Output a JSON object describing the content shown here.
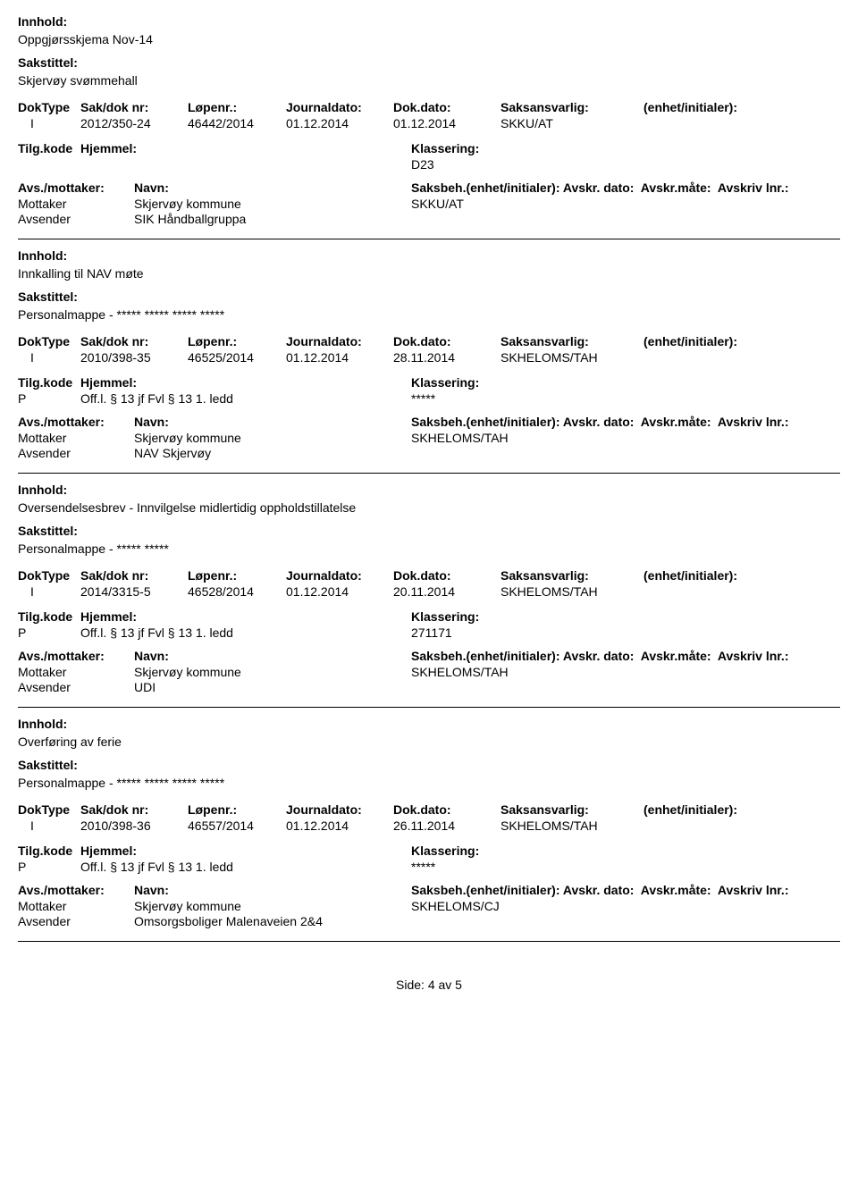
{
  "labels": {
    "innhold": "Innhold:",
    "sakstittel": "Sakstittel:",
    "doktype": "DokType",
    "sakdok": "Sak/dok nr:",
    "lopenr": "Løpenr.:",
    "journaldato": "Journaldato:",
    "dokdato": "Dok.dato:",
    "saksansvarlig": "Saksansvarlig:",
    "enhet": "(enhet/initialer):",
    "tilgkode": "Tilg.kode",
    "hjemmel": "Hjemmel:",
    "klassering": "Klassering:",
    "avsmottaker": "Avs./mottaker:",
    "navn": "Navn:",
    "saksbeh": "Saksbeh.(enhet/initialer):",
    "avskrdato": "Avskr. dato:",
    "avskrmate": "Avskr.måte:",
    "avskrivlnr": "Avskriv lnr.:",
    "mottaker": "Mottaker",
    "avsender": "Avsender"
  },
  "records": [
    {
      "innhold": "Oppgjørsskjema Nov-14",
      "sakstittel": "Skjervøy svømmehall",
      "doktype": "I",
      "sakdok": "2012/350-24",
      "lopenr": "46442/2014",
      "journaldato": "01.12.2014",
      "dokdato": "01.12.2014",
      "saksansvarlig": "SKKU/AT",
      "tilgkode": "",
      "hjemmel": "",
      "klassering": "D23",
      "mottaker_navn": "Skjervøy kommune",
      "mottaker_saksbeh": "SKKU/AT",
      "avsender_navn": "SIK Håndballgruppa"
    },
    {
      "innhold": "Innkalling til NAV møte",
      "sakstittel": "Personalmappe - ***** ***** ***** *****",
      "doktype": "I",
      "sakdok": "2010/398-35",
      "lopenr": "46525/2014",
      "journaldato": "01.12.2014",
      "dokdato": "28.11.2014",
      "saksansvarlig": "SKHELOMS/TAH",
      "tilgkode": "P",
      "hjemmel": "Off.l. § 13 jf Fvl § 13 1. ledd",
      "klassering": "*****",
      "mottaker_navn": "Skjervøy kommune",
      "mottaker_saksbeh": "SKHELOMS/TAH",
      "avsender_navn": "NAV Skjervøy"
    },
    {
      "innhold": "Oversendelsesbrev - Innvilgelse midlertidig oppholdstillatelse",
      "sakstittel": "Personalmappe - ***** *****",
      "doktype": "I",
      "sakdok": "2014/3315-5",
      "lopenr": "46528/2014",
      "journaldato": "01.12.2014",
      "dokdato": "20.11.2014",
      "saksansvarlig": "SKHELOMS/TAH",
      "tilgkode": "P",
      "hjemmel": "Off.l. § 13 jf Fvl § 13 1. ledd",
      "klassering": "271171",
      "mottaker_navn": "Skjervøy kommune",
      "mottaker_saksbeh": "SKHELOMS/TAH",
      "avsender_navn": "UDI"
    },
    {
      "innhold": "Overføring av ferie",
      "sakstittel": "Personalmappe - ***** ***** ***** *****",
      "doktype": "I",
      "sakdok": "2010/398-36",
      "lopenr": "46557/2014",
      "journaldato": "01.12.2014",
      "dokdato": "26.11.2014",
      "saksansvarlig": "SKHELOMS/TAH",
      "tilgkode": "P",
      "hjemmel": "Off.l. § 13 jf Fvl § 13 1. ledd",
      "klassering": "*****",
      "mottaker_navn": "Skjervøy kommune",
      "mottaker_saksbeh": "SKHELOMS/CJ",
      "avsender_navn": "Omsorgsboliger Malenaveien 2&4"
    }
  ],
  "footer": "Side: 4 av 5"
}
